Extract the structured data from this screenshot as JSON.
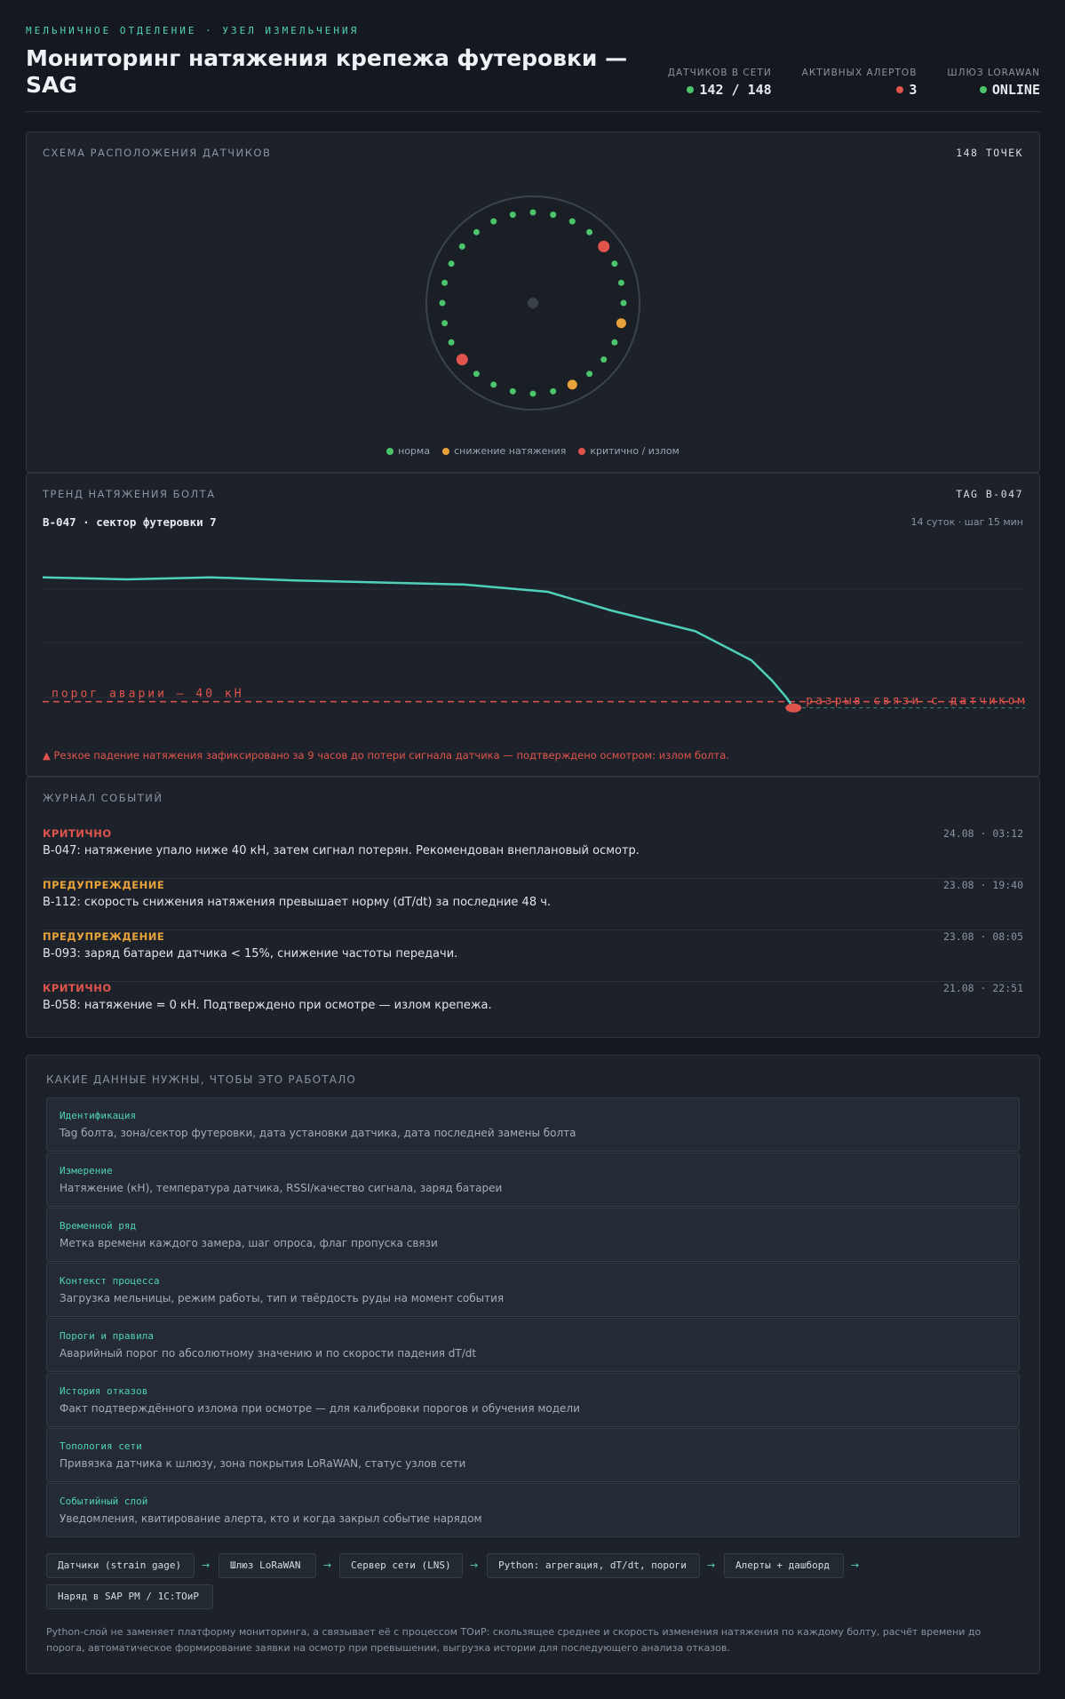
{
  "header": {
    "eyebrow": "МЕЛЬНИЧНОЕ ОТДЕЛЕНИЕ · УЗЕЛ ИЗМЕЛЬЧЕНИЯ",
    "title": "Мониторинг натяжения крепежа футеровки — SAG",
    "stats": [
      {
        "label": "ДАТЧИКОВ В СЕТИ",
        "value": "142 / 148",
        "dot_color": "#4cc46a"
      },
      {
        "label": "АКТИВНЫХ АЛЕРТОВ",
        "value": "3",
        "dot_color": "#e0544c"
      },
      {
        "label": "ШЛЮЗ LORAWAN",
        "value": "ONLINE",
        "dot_color": "#4cc46a"
      }
    ]
  },
  "colors": {
    "normal": "#4cc46a",
    "warning": "#e8a23a",
    "critical": "#e0544c",
    "accent": "#4fd1b9"
  },
  "sensor_map": {
    "label": "СХЕМА РАСПОЛОЖЕНИЯ ДАТЧИКОВ",
    "count_label": "148 ТОЧЕК",
    "points_shown": 28,
    "status_by_index": {
      "4": "critical",
      "8": "warning",
      "12": "warning",
      "18": "critical"
    },
    "legend": [
      {
        "label": "норма",
        "color": "#4cc46a"
      },
      {
        "label": "снижение натяжения",
        "color": "#e8a23a"
      },
      {
        "label": "критично / излом",
        "color": "#e0544c"
      }
    ]
  },
  "trend": {
    "label": "ТРЕНД НАТЯЖЕНИЯ БОЛТА",
    "tag": "TAG B-047",
    "title": "B-047 · сектор футеровки 7",
    "meta": "14 суток · шаг 15 мин",
    "threshold_label": "порог аварии — 40 кН",
    "threshold": 40,
    "lost_label": "разрыв связи с датчиком",
    "note": "▲ Резкое падение натяжения зафиксировано за 9 часов до потери сигнала датчика — подтверждено осмотром: излом болта.",
    "line_color": "#4fd1b9",
    "x_range": [
      0,
      14
    ],
    "y_range": [
      30,
      120
    ],
    "series": [
      [
        0,
        100
      ],
      [
        1.2,
        99
      ],
      [
        2.4,
        100
      ],
      [
        3.6,
        98.5
      ],
      [
        4.8,
        97.5
      ],
      [
        6,
        96.5
      ],
      [
        7.2,
        93
      ],
      [
        8.1,
        84
      ],
      [
        9.3,
        74
      ],
      [
        10.1,
        60
      ],
      [
        10.4,
        50
      ],
      [
        10.6,
        42
      ],
      [
        10.7,
        37
      ]
    ]
  },
  "log": {
    "label": "ЖУРНАЛ СОБЫТИЙ",
    "items": [
      {
        "level": "КРИТИЧНО",
        "severity": "critical",
        "time": "24.08 · 03:12",
        "text": "B-047: натяжение упало ниже 40 кН, затем сигнал потерян. Рекомендован внеплановый осмотр."
      },
      {
        "level": "ПРЕДУПРЕЖДЕНИЕ",
        "severity": "warning",
        "time": "23.08 · 19:40",
        "text": "B-112: скорость снижения натяжения превышает норму (dT/dt) за последние 48 ч."
      },
      {
        "level": "ПРЕДУПРЕЖДЕНИЕ",
        "severity": "warning",
        "time": "23.08 · 08:05",
        "text": "B-093: заряд батареи датчика < 15%, снижение частоты передачи."
      },
      {
        "level": "КРИТИЧНО",
        "severity": "critical",
        "time": "21.08 · 22:51",
        "text": "B-058: натяжение = 0 кН. Подтверждено при осмотре — излом крепежа."
      }
    ]
  },
  "requirements": {
    "label": "КАКИЕ ДАННЫЕ НУЖНЫ, ЧТОБЫ ЭТО РАБОТАЛО",
    "items": [
      {
        "title": "Идентификация",
        "desc": "Tag болта, зона/сектор футеровки, дата установки датчика, дата последней замены болта"
      },
      {
        "title": "Измерение",
        "desc": "Натяжение (кН), температура датчика, RSSI/качество сигнала, заряд батареи"
      },
      {
        "title": "Временной ряд",
        "desc": "Метка времени каждого замера, шаг опроса, флаг пропуска связи"
      },
      {
        "title": "Контекст процесса",
        "desc": "Загрузка мельницы, режим работы, тип и твёрдость руды на момент события"
      },
      {
        "title": "Пороги и правила",
        "desc": "Аварийный порог по абсолютному значению и по скорости падения dT/dt"
      },
      {
        "title": "История отказов",
        "desc": "Факт подтверждённого излома при осмотре — для калибровки порогов и обучения модели"
      },
      {
        "title": "Топология сети",
        "desc": "Привязка датчика к шлюзу, зона покрытия LoRaWAN, статус узлов сети"
      },
      {
        "title": "Событийный слой",
        "desc": "Уведомления, квитирование алерта, кто и когда закрыл событие нарядом"
      }
    ],
    "flow": [
      "Датчики (strain gage)",
      "Шлюз LoRaWAN",
      "Сервер сети (LNS)",
      "Python: агрегация, dT/dt, пороги",
      "Алерты + дашборд",
      "Наряд в SAP PM / 1С:ТОиР"
    ],
    "arrow": "→",
    "footnote": "Python-слой не заменяет платформу мониторинга, а связывает её с процессом ТОиР: скользящее среднее и скорость изменения натяжения по каждому болту, расчёт времени до порога, автоматическое формирование заявки на осмотр при превышении, выгрузка истории для последующего анализа отказов."
  }
}
